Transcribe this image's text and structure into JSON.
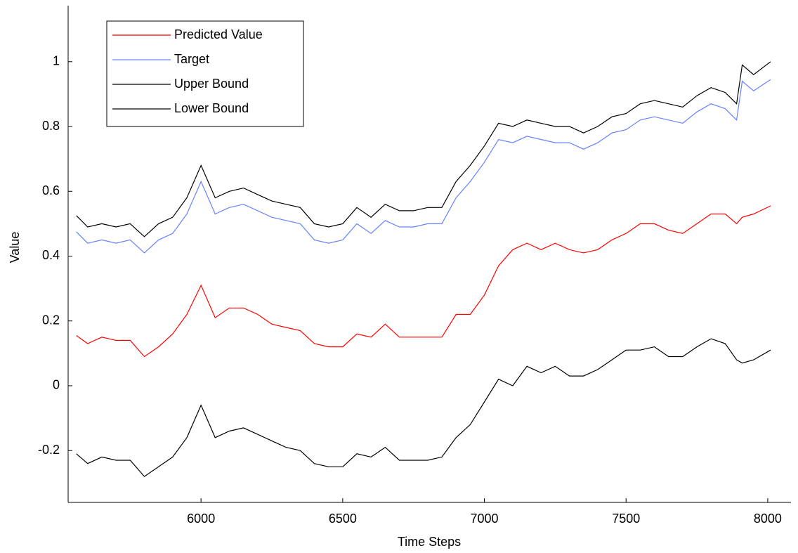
{
  "chart_data": {
    "type": "line",
    "xlabel": "Time Steps",
    "ylabel": "Value",
    "x": [
      5560,
      5600,
      5650,
      5700,
      5750,
      5800,
      5850,
      5900,
      5950,
      6000,
      6050,
      6100,
      6150,
      6200,
      6250,
      6300,
      6350,
      6400,
      6450,
      6500,
      6550,
      6600,
      6650,
      6700,
      6750,
      6800,
      6850,
      6900,
      6950,
      7000,
      7050,
      7100,
      7150,
      7200,
      7250,
      7300,
      7350,
      7400,
      7450,
      7500,
      7550,
      7600,
      7650,
      7700,
      7750,
      7800,
      7850,
      7890,
      7910,
      7950,
      8010
    ],
    "series": [
      {
        "name": "Predicted Value",
        "color": "#ff0000",
        "values": [
          0.155,
          0.13,
          0.15,
          0.14,
          0.14,
          0.09,
          0.12,
          0.16,
          0.22,
          0.31,
          0.21,
          0.24,
          0.24,
          0.22,
          0.19,
          0.18,
          0.17,
          0.13,
          0.12,
          0.12,
          0.16,
          0.15,
          0.19,
          0.15,
          0.15,
          0.15,
          0.15,
          0.22,
          0.22,
          0.28,
          0.37,
          0.42,
          0.44,
          0.42,
          0.44,
          0.42,
          0.41,
          0.42,
          0.45,
          0.47,
          0.5,
          0.5,
          0.48,
          0.47,
          0.5,
          0.53,
          0.53,
          0.5,
          0.52,
          0.53,
          0.555
        ]
      },
      {
        "name": "Target",
        "color": "#6680ff",
        "values": [
          0.475,
          0.44,
          0.45,
          0.44,
          0.45,
          0.41,
          0.45,
          0.47,
          0.53,
          0.63,
          0.53,
          0.55,
          0.56,
          0.54,
          0.52,
          0.51,
          0.5,
          0.45,
          0.44,
          0.45,
          0.5,
          0.47,
          0.51,
          0.49,
          0.49,
          0.5,
          0.5,
          0.58,
          0.63,
          0.69,
          0.76,
          0.75,
          0.77,
          0.76,
          0.75,
          0.75,
          0.73,
          0.75,
          0.78,
          0.79,
          0.82,
          0.83,
          0.82,
          0.81,
          0.845,
          0.87,
          0.855,
          0.82,
          0.94,
          0.91,
          0.945
        ]
      },
      {
        "name": "Upper Bound",
        "color": "#000000",
        "values": [
          0.525,
          0.49,
          0.5,
          0.49,
          0.5,
          0.46,
          0.5,
          0.52,
          0.58,
          0.68,
          0.58,
          0.6,
          0.61,
          0.59,
          0.57,
          0.56,
          0.55,
          0.5,
          0.49,
          0.5,
          0.55,
          0.52,
          0.56,
          0.54,
          0.54,
          0.55,
          0.55,
          0.63,
          0.68,
          0.74,
          0.81,
          0.8,
          0.82,
          0.81,
          0.8,
          0.8,
          0.78,
          0.8,
          0.83,
          0.84,
          0.87,
          0.88,
          0.87,
          0.86,
          0.895,
          0.92,
          0.905,
          0.87,
          0.99,
          0.96,
          1.0
        ]
      },
      {
        "name": "Lower Bound",
        "color": "#000000",
        "values": [
          -0.21,
          -0.24,
          -0.22,
          -0.23,
          -0.23,
          -0.28,
          -0.25,
          -0.22,
          -0.16,
          -0.06,
          -0.16,
          -0.14,
          -0.13,
          -0.15,
          -0.17,
          -0.19,
          -0.2,
          -0.24,
          -0.25,
          -0.25,
          -0.21,
          -0.22,
          -0.19,
          -0.23,
          -0.23,
          -0.23,
          -0.22,
          -0.16,
          -0.12,
          -0.05,
          0.02,
          0.0,
          0.06,
          0.04,
          0.06,
          0.03,
          0.03,
          0.05,
          0.08,
          0.11,
          0.11,
          0.12,
          0.09,
          0.09,
          0.12,
          0.145,
          0.13,
          0.08,
          0.07,
          0.08,
          0.11
        ]
      }
    ],
    "xlim": [
      5531,
      8082
    ],
    "ylim": [
      -0.36,
      1.173
    ],
    "xticks": [
      6000,
      6500,
      7000,
      7500,
      8000
    ],
    "yticks": [
      -0.2,
      0,
      0.2,
      0.4,
      0.6,
      0.8,
      1
    ],
    "legend": "upper left"
  }
}
